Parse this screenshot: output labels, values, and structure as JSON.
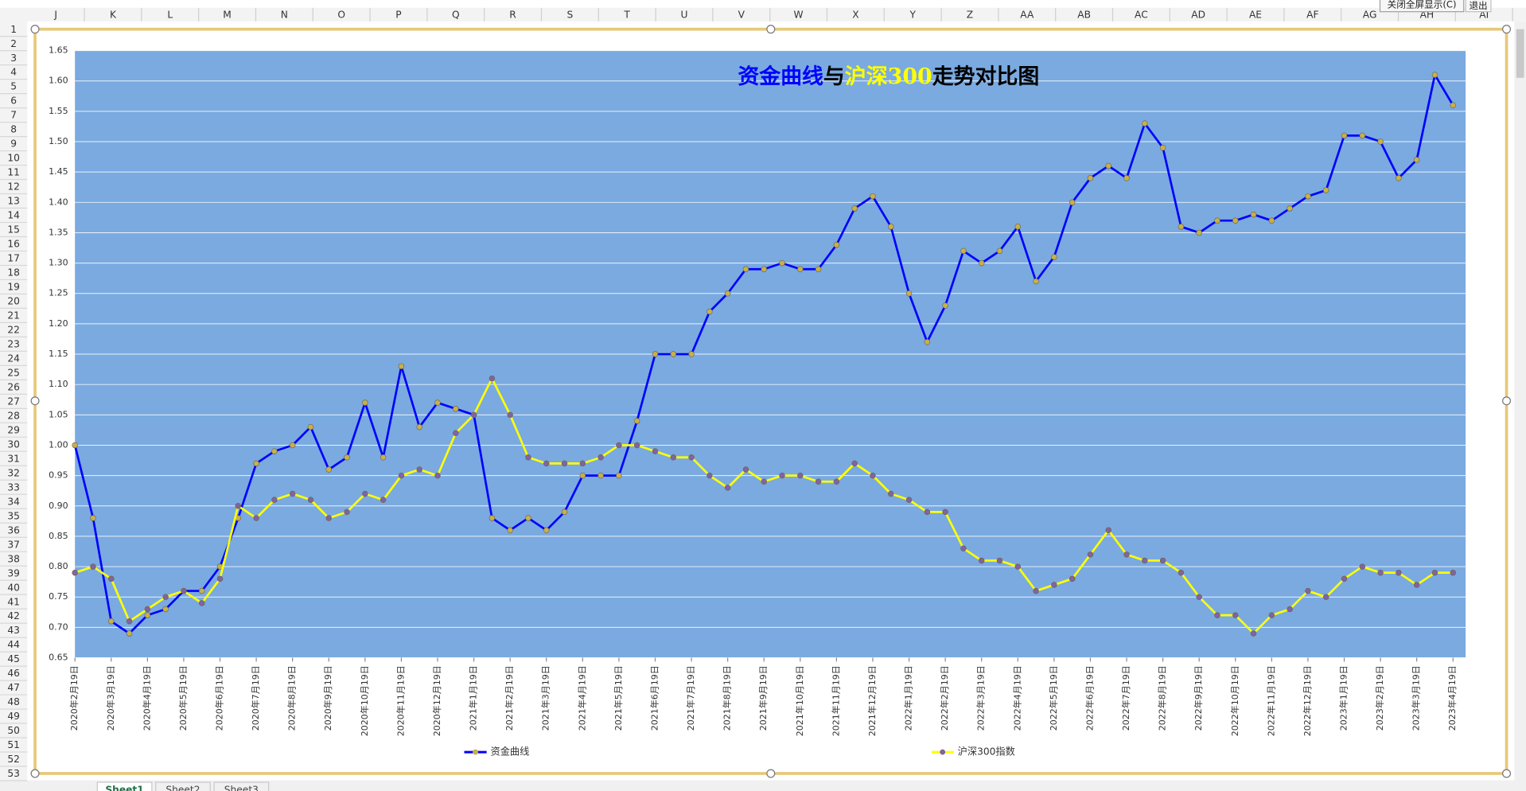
{
  "excel": {
    "column_headers": [
      "J",
      "K",
      "L",
      "M",
      "N",
      "O",
      "P",
      "Q",
      "R",
      "S",
      "T",
      "U",
      "V",
      "W",
      "X",
      "Y",
      "Z",
      "AA",
      "AB",
      "AC",
      "AD",
      "AE",
      "AF",
      "AG",
      "AH",
      "AI"
    ],
    "row_headers": [
      1,
      2,
      3,
      4,
      5,
      6,
      7,
      8,
      9,
      10,
      11,
      12,
      13,
      14,
      15,
      16,
      17,
      18,
      19,
      20,
      21,
      22,
      23,
      24,
      25,
      26,
      27,
      28,
      29,
      30,
      31,
      32,
      33,
      34,
      35,
      36,
      37,
      38,
      39,
      40,
      41,
      42,
      43,
      44,
      45,
      46,
      47,
      48,
      49,
      50,
      51,
      52,
      53
    ],
    "sheet_tabs": [
      "Sheet1",
      "Sheet2",
      "Sheet3"
    ],
    "buttons": [
      "关闭全屏显示(C)",
      "退出"
    ]
  },
  "chart_data": {
    "type": "line",
    "title": [
      {
        "text": "资金曲线",
        "color": "#0000ff"
      },
      {
        "text": "与",
        "color": "#000000"
      },
      {
        "text": "沪深300",
        "color": "#ffff00"
      },
      {
        "text": "走势对比图",
        "color": "#000000"
      }
    ],
    "categories": [
      "2020年2月19日",
      null,
      "2020年3月19日",
      null,
      "2020年4月19日",
      null,
      "2020年5月19日",
      null,
      "2020年6月19日",
      null,
      "2020年7月19日",
      null,
      "2020年8月19日",
      null,
      "2020年9月19日",
      null,
      "2020年10月19日",
      null,
      "2020年11月19日",
      null,
      "2020年12月19日",
      null,
      "2021年1月19日",
      null,
      "2021年2月19日",
      null,
      "2021年3月19日",
      null,
      "2021年4月19日",
      null,
      "2021年5月19日",
      null,
      "2021年6月19日",
      null,
      "2021年7月19日",
      null,
      "2021年8月19日",
      null,
      "2021年9月19日",
      null,
      "2021年10月19日",
      null,
      "2021年11月19日",
      null,
      "2021年12月19日",
      null,
      "2022年1月19日",
      null,
      "2022年2月19日",
      null,
      "2022年3月19日",
      null,
      "2022年4月19日",
      null,
      "2022年5月19日",
      null,
      "2022年6月19日",
      null,
      "2022年7月19日",
      null,
      "2022年8月19日",
      null,
      "2022年9月19日",
      null,
      "2022年10月19日",
      null,
      "2022年11月19日",
      null,
      "2022年12月19日",
      null,
      "2023年1月19日",
      null,
      "2023年2月19日",
      null,
      "2023年3月19日",
      null,
      "2023年4月19日"
    ],
    "series": [
      {
        "name": "资金曲线",
        "color": "#0000ff",
        "marker_color": "#c8b04a",
        "values": [
          1.0,
          0.88,
          0.71,
          0.69,
          0.72,
          0.73,
          0.76,
          0.76,
          0.8,
          0.88,
          0.97,
          0.99,
          1.0,
          1.03,
          0.96,
          0.98,
          1.07,
          0.98,
          1.13,
          1.03,
          1.07,
          1.06,
          1.05,
          0.88,
          0.86,
          0.88,
          0.86,
          0.89,
          0.95,
          0.95,
          0.95,
          1.04,
          1.15,
          1.15,
          1.15,
          1.22,
          1.25,
          1.29,
          1.29,
          1.3,
          1.29,
          1.29,
          1.33,
          1.39,
          1.41,
          1.36,
          1.25,
          1.17,
          1.23,
          1.32,
          1.3,
          1.32,
          1.36,
          1.27,
          1.31,
          1.4,
          1.44,
          1.46,
          1.44,
          1.53,
          1.49,
          1.36,
          1.35,
          1.37,
          1.37,
          1.38,
          1.37,
          1.39,
          1.41,
          1.42,
          1.51,
          1.51,
          1.5,
          1.44,
          1.47,
          1.61,
          1.56
        ]
      },
      {
        "name": "沪深300指数",
        "color": "#ffff00",
        "marker_color": "#8064a2",
        "values": [
          0.79,
          0.8,
          0.78,
          0.71,
          0.73,
          0.75,
          0.76,
          0.74,
          0.78,
          0.9,
          0.88,
          0.91,
          0.92,
          0.91,
          0.88,
          0.89,
          0.92,
          0.91,
          0.95,
          0.96,
          0.95,
          1.02,
          1.05,
          1.11,
          1.05,
          0.98,
          0.97,
          0.97,
          0.97,
          0.98,
          1.0,
          1.0,
          0.99,
          0.98,
          0.98,
          0.95,
          0.93,
          0.96,
          0.94,
          0.95,
          0.95,
          0.94,
          0.94,
          0.97,
          0.95,
          0.92,
          0.91,
          0.89,
          0.89,
          0.83,
          0.81,
          0.81,
          0.8,
          0.76,
          0.77,
          0.78,
          0.82,
          0.86,
          0.82,
          0.81,
          0.81,
          0.79,
          0.75,
          0.72,
          0.72,
          0.69,
          0.72,
          0.73,
          0.76,
          0.75,
          0.78,
          0.8,
          0.79,
          0.79,
          0.77,
          0.79,
          0.79
        ]
      }
    ],
    "ylim": [
      0.65,
      1.65
    ],
    "yticks": [
      0.65,
      {
        "value": 0.7,
        "label": "0.70"
      },
      0.75,
      {
        "value": 0.8,
        "label": "0.80"
      },
      0.85,
      {
        "value": 0.9,
        "label": "0.90"
      },
      0.95,
      {
        "value": 1,
        "label": "1.00"
      },
      1.05,
      {
        "value": 1.1,
        "label": "1.10"
      },
      1.15,
      {
        "value": 1.2,
        "label": "1.20"
      },
      1.25,
      {
        "value": 1.3,
        "label": "1.30"
      },
      1.35,
      {
        "value": 1.4,
        "label": "1.40"
      },
      1.45,
      {
        "value": 1.5,
        "label": "1.50"
      },
      1.55,
      {
        "value": 1.6,
        "label": "1.60"
      },
      1.65
    ],
    "grid": true,
    "plot_color": "#7aaae0"
  }
}
